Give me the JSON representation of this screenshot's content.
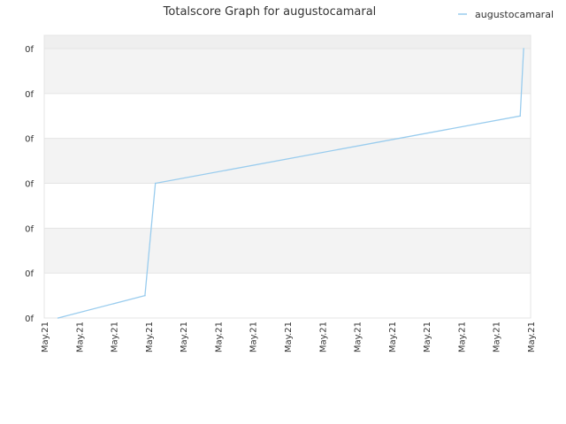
{
  "chart_data": {
    "type": "line",
    "title": "Totalscore Graph for augustocamaral",
    "xlabel": "",
    "ylabel": "",
    "x_tick_labels": [
      "May.21",
      "May.21",
      "May.21",
      "May.21",
      "May.21",
      "May.21",
      "May.21",
      "May.21",
      "May.21",
      "May.21",
      "May.21",
      "May.21",
      "May.21",
      "May.21",
      "May.21"
    ],
    "y_tick_labels": [
      "0f",
      "0f",
      "0f",
      "0f",
      "0f",
      "0f",
      "0f"
    ],
    "xlim": [
      0,
      14
    ],
    "ylim": [
      0,
      6
    ],
    "grid": true,
    "legend_position": "top-right",
    "series": [
      {
        "name": "augustocamaral",
        "color": "#99ccee",
        "points": [
          {
            "x": 0.4,
            "y": 0.0
          },
          {
            "x": 2.9,
            "y": 0.5
          },
          {
            "x": 3.2,
            "y": 3.0
          },
          {
            "x": 13.7,
            "y": 4.5
          },
          {
            "x": 13.8,
            "y": 6.0
          }
        ]
      }
    ]
  }
}
